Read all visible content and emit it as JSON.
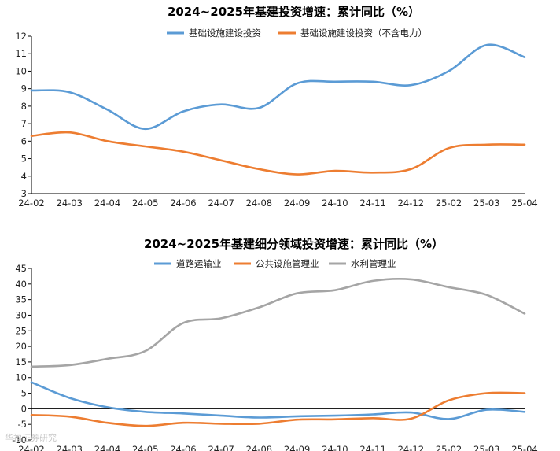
{
  "chart_data": [
    {
      "type": "line",
      "title": "2024~2025年基建投资增速：累计同比（%）",
      "xlabel": "",
      "ylabel": "",
      "categories": [
        "24-02",
        "24-03",
        "24-04",
        "24-05",
        "24-06",
        "24-07",
        "24-08",
        "24-09",
        "24-10",
        "24-11",
        "24-12",
        "25-02",
        "25-03",
        "25-04"
      ],
      "ylim": [
        3,
        12
      ],
      "yticks": [
        3,
        4,
        5,
        6,
        7,
        8,
        9,
        10,
        11,
        12
      ],
      "legend_position": "top",
      "series": [
        {
          "name": "基础设施建设投资",
          "color": "#5b9bd5",
          "values": [
            8.9,
            8.8,
            7.8,
            6.7,
            7.7,
            8.1,
            7.9,
            9.3,
            9.4,
            9.4,
            9.2,
            10.0,
            11.5,
            10.8
          ]
        },
        {
          "name": "基础设施建设投资（不含电力）",
          "color": "#ed7d31",
          "values": [
            6.3,
            6.5,
            6.0,
            5.7,
            5.4,
            4.9,
            4.4,
            4.1,
            4.3,
            4.2,
            4.4,
            5.6,
            5.8,
            5.8
          ]
        }
      ]
    },
    {
      "type": "line",
      "title": "2024~2025年基建细分领域投资增速：累计同比（%）",
      "xlabel": "",
      "ylabel": "",
      "categories": [
        "24-02",
        "24-03",
        "24-04",
        "24-05",
        "24-06",
        "24-07",
        "24-08",
        "24-09",
        "24-10",
        "24-11",
        "24-12",
        "25-02",
        "25-03",
        "25-04"
      ],
      "ylim": [
        -10,
        45
      ],
      "yticks": [
        -10,
        -5,
        0,
        5,
        10,
        15,
        20,
        25,
        30,
        35,
        40,
        45
      ],
      "legend_position": "top",
      "series": [
        {
          "name": "道路运输业",
          "color": "#5b9bd5",
          "values": [
            8.5,
            3.5,
            0.5,
            -1.0,
            -1.5,
            -2.2,
            -2.8,
            -2.4,
            -2.2,
            -1.8,
            -1.2,
            -3.3,
            -0.3,
            -1.0
          ]
        },
        {
          "name": "公共设施管理业",
          "color": "#ed7d31",
          "values": [
            -2.0,
            -2.5,
            -4.5,
            -5.5,
            -4.5,
            -4.8,
            -4.8,
            -3.5,
            -3.4,
            -3.0,
            -3.2,
            2.7,
            5.0,
            5.0
          ]
        },
        {
          "name": "水利管理业",
          "color": "#a5a5a5",
          "values": [
            13.5,
            14.0,
            16.0,
            18.5,
            27.5,
            29.0,
            32.5,
            37.0,
            38.0,
            41.0,
            41.5,
            39.0,
            36.5,
            30.5
          ]
        }
      ]
    }
  ],
  "watermark": "华福证券研究"
}
